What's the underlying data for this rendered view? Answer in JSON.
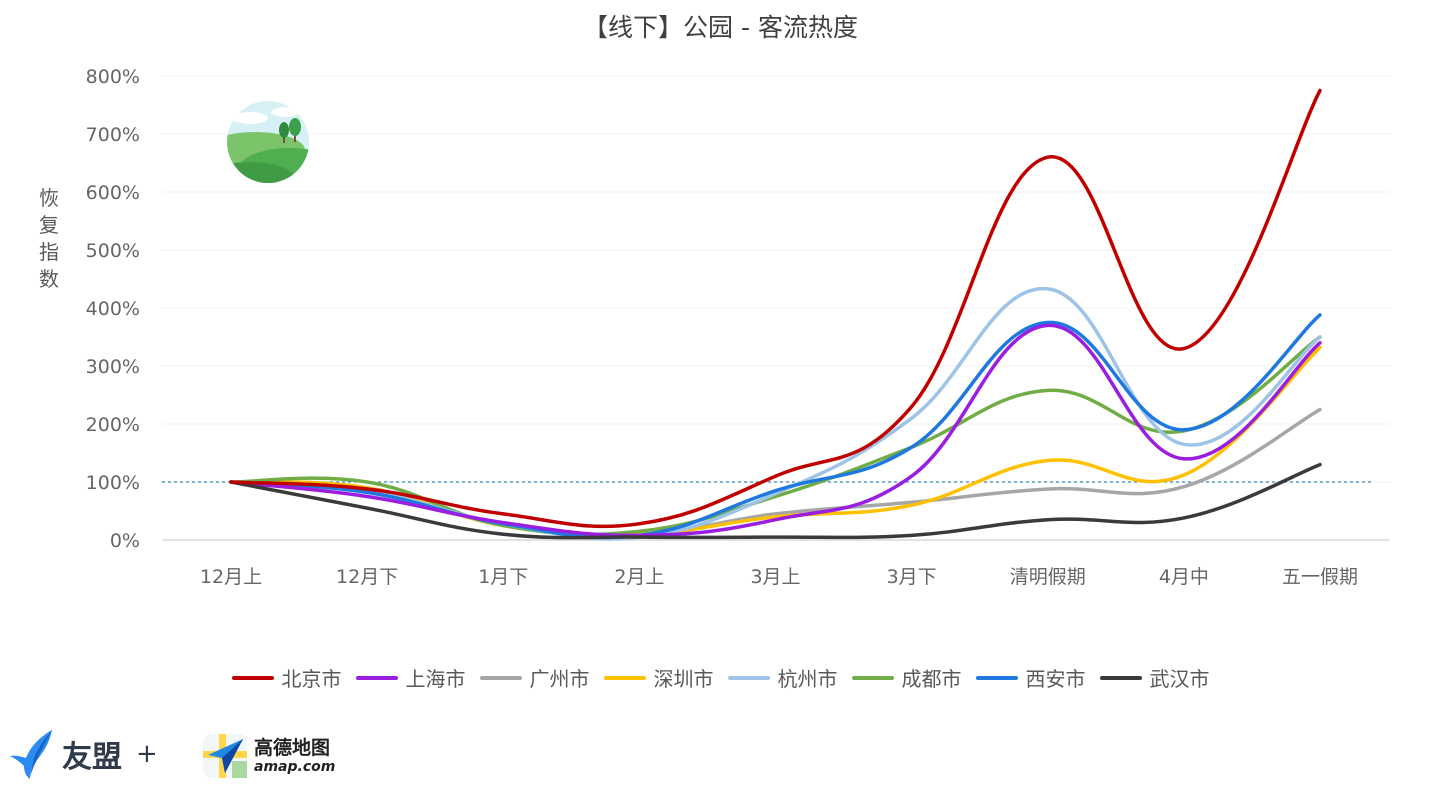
{
  "chart_data": {
    "type": "line",
    "title": "【线下】公园 - 客流热度",
    "ylabel": "恢复指数",
    "xlabel": "",
    "categories": [
      "12月上",
      "12月下",
      "1月下",
      "2月上",
      "3月上",
      "3月下",
      "清明假期",
      "4月中",
      "五一假期"
    ],
    "ylim": [
      0,
      800
    ],
    "y_ticks": [
      "0%",
      "100%",
      "200%",
      "300%",
      "400%",
      "500%",
      "600%",
      "700%",
      "800%"
    ],
    "y_unit": "%",
    "reference_line": 100,
    "grid": true,
    "legend_position": "bottom",
    "series": [
      {
        "name": "北京市",
        "color": "#c00000",
        "values": [
          100,
          88,
          45,
          28,
          110,
          230,
          660,
          330,
          775
        ]
      },
      {
        "name": "上海市",
        "color": "#9b1de0",
        "values": [
          100,
          75,
          30,
          8,
          35,
          110,
          370,
          140,
          340
        ]
      },
      {
        "name": "广州市",
        "color": "#a6a6a6",
        "values": [
          100,
          90,
          25,
          10,
          45,
          65,
          88,
          92,
          225
        ]
      },
      {
        "name": "深圳市",
        "color": "#ffc000",
        "values": [
          100,
          90,
          25,
          10,
          40,
          60,
          137,
          112,
          332
        ]
      },
      {
        "name": "杭州市",
        "color": "#9dc3e6",
        "values": [
          100,
          85,
          28,
          5,
          80,
          210,
          433,
          165,
          350
        ]
      },
      {
        "name": "成都市",
        "color": "#70ad47",
        "values": [
          100,
          100,
          25,
          15,
          75,
          160,
          258,
          188,
          350
        ]
      },
      {
        "name": "西安市",
        "color": "#1f78e0",
        "values": [
          100,
          82,
          28,
          8,
          85,
          160,
          375,
          190,
          388
        ]
      },
      {
        "name": "武汉市",
        "color": "#3a3a3a",
        "values": [
          100,
          55,
          10,
          5,
          5,
          8,
          35,
          38,
          130
        ]
      }
    ]
  },
  "footer": {
    "umeng_label": "友盟",
    "plus": "+",
    "amap_name": "高德地图",
    "amap_url": "amap.com"
  },
  "icons": {
    "badge": "park-landscape-icon",
    "umeng": "umeng-bird-icon",
    "amap": "amap-arrow-icon"
  }
}
